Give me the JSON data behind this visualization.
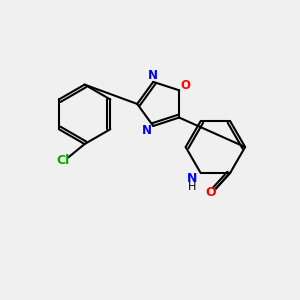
{
  "background_color": "#f0f0f0",
  "bond_color": "#000000",
  "atom_colors": {
    "N": "#0000ff",
    "O_ring": "#ff0000",
    "O_carbonyl": "#ff0000",
    "Cl": "#00aa00",
    "C": "#000000",
    "H": "#000000"
  },
  "figsize": [
    3.0,
    3.0
  ],
  "dpi": 100
}
